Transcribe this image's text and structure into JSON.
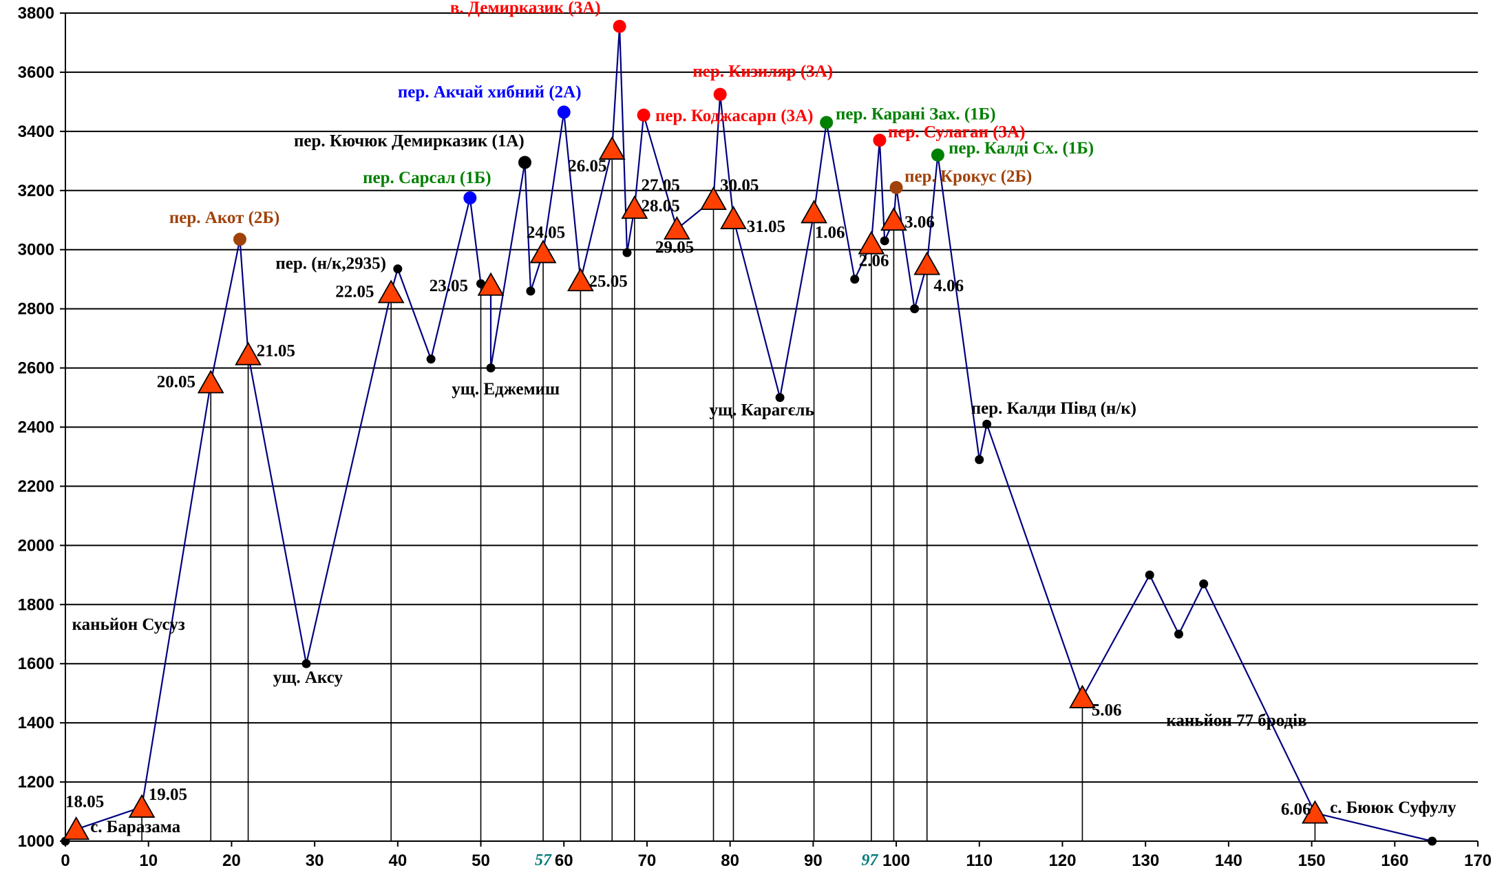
{
  "chart_data": {
    "type": "line",
    "xlim": [
      0,
      170
    ],
    "ylim": [
      1000,
      3800
    ],
    "x_ticks": [
      0,
      10,
      20,
      30,
      40,
      50,
      60,
      70,
      80,
      90,
      100,
      110,
      120,
      130,
      140,
      150,
      160,
      170
    ],
    "y_ticks": [
      1000,
      1200,
      1400,
      1600,
      1800,
      2000,
      2200,
      2400,
      2600,
      2800,
      3000,
      3200,
      3400,
      3600,
      3800
    ],
    "grid": "horizontal",
    "colors": {
      "line": "#000080",
      "camp": "#ff4000",
      "red": "#ff0000",
      "blue": "#0000ff",
      "green": "#008000",
      "brown": "#a0420a",
      "black": "#000000",
      "teal": "#007c7c"
    },
    "points": [
      {
        "x": 0,
        "y": 1000,
        "marker": "dot",
        "color": "black"
      },
      {
        "x": 1.3,
        "y": 1040,
        "marker": "camp"
      },
      {
        "x": 9.2,
        "y": 1115,
        "marker": "camp"
      },
      {
        "x": 17.5,
        "y": 2550,
        "marker": "camp"
      },
      {
        "x": 21,
        "y": 3035,
        "marker": "circle",
        "color": "brown"
      },
      {
        "x": 22,
        "y": 2645,
        "marker": "camp"
      },
      {
        "x": 29,
        "y": 1600,
        "marker": "dot",
        "color": "black"
      },
      {
        "x": 39.2,
        "y": 2855,
        "marker": "camp"
      },
      {
        "x": 40,
        "y": 2935,
        "marker": "dot",
        "color": "black"
      },
      {
        "x": 44,
        "y": 2630,
        "marker": "dot",
        "color": "black"
      },
      {
        "x": 48.7,
        "y": 3175,
        "marker": "circle",
        "color": "blue"
      },
      {
        "x": 50,
        "y": 2885,
        "marker": "dot",
        "color": "black"
      },
      {
        "x": 51.2,
        "y": 2880,
        "marker": "camp"
      },
      {
        "x": 51.2,
        "y": 2600,
        "marker": "dot",
        "color": "black"
      },
      {
        "x": 55.3,
        "y": 3295,
        "marker": "circle",
        "color": "black"
      },
      {
        "x": 56,
        "y": 2860,
        "marker": "dot",
        "color": "black"
      },
      {
        "x": 57.5,
        "y": 2990,
        "marker": "camp"
      },
      {
        "x": 60,
        "y": 3465,
        "marker": "circle",
        "color": "blue"
      },
      {
        "x": 62,
        "y": 2895,
        "marker": "camp"
      },
      {
        "x": 65.8,
        "y": 3340,
        "marker": "camp"
      },
      {
        "x": 66.7,
        "y": 3755,
        "marker": "circle",
        "color": "red"
      },
      {
        "x": 67.6,
        "y": 2990,
        "marker": "dot",
        "color": "black"
      },
      {
        "x": 68.5,
        "y": 3140,
        "marker": "camp"
      },
      {
        "x": 69.6,
        "y": 3455,
        "marker": "circle",
        "color": "red"
      },
      {
        "x": 73.6,
        "y": 3070,
        "marker": "camp"
      },
      {
        "x": 78,
        "y": 3170,
        "marker": "camp"
      },
      {
        "x": 78.8,
        "y": 3525,
        "marker": "circle",
        "color": "red"
      },
      {
        "x": 80.4,
        "y": 3105,
        "marker": "camp"
      },
      {
        "x": 86,
        "y": 2500,
        "marker": "dot",
        "color": "black"
      },
      {
        "x": 90.1,
        "y": 3125,
        "marker": "camp"
      },
      {
        "x": 91.6,
        "y": 3430,
        "marker": "circle",
        "color": "green"
      },
      {
        "x": 95,
        "y": 2900,
        "marker": "dot",
        "color": "black"
      },
      {
        "x": 97,
        "y": 3020,
        "marker": "camp"
      },
      {
        "x": 98,
        "y": 3370,
        "marker": "circle",
        "color": "red"
      },
      {
        "x": 98.6,
        "y": 3030,
        "marker": "dot",
        "color": "black"
      },
      {
        "x": 99.7,
        "y": 3100,
        "marker": "camp"
      },
      {
        "x": 100,
        "y": 3210,
        "marker": "circle",
        "color": "brown"
      },
      {
        "x": 102.2,
        "y": 2800,
        "marker": "dot",
        "color": "black"
      },
      {
        "x": 103.7,
        "y": 2950,
        "marker": "camp"
      },
      {
        "x": 105,
        "y": 3320,
        "marker": "circle",
        "color": "green"
      },
      {
        "x": 110,
        "y": 2290,
        "marker": "dot",
        "color": "black"
      },
      {
        "x": 110.9,
        "y": 2410,
        "marker": "dot",
        "color": "black"
      },
      {
        "x": 122.4,
        "y": 1485,
        "marker": "camp"
      },
      {
        "x": 130.5,
        "y": 1900,
        "marker": "dot",
        "color": "black"
      },
      {
        "x": 134,
        "y": 1700,
        "marker": "dot",
        "color": "black"
      },
      {
        "x": 137,
        "y": 1870,
        "marker": "dot",
        "color": "black"
      },
      {
        "x": 150.4,
        "y": 1095,
        "marker": "camp"
      },
      {
        "x": 164.5,
        "y": 1000,
        "marker": "dot",
        "color": "black"
      }
    ],
    "drops": [
      17.5,
      22,
      39.2,
      50,
      57.5,
      62,
      65.8,
      68.5,
      78,
      80.4,
      90.1,
      97,
      99.7,
      103.7,
      122.4,
      150.4
    ],
    "short_drops": [
      9.2
    ],
    "labels": [
      {
        "text": "18.05",
        "x": 0,
        "y": 1115,
        "color": "black"
      },
      {
        "text": "19.05",
        "x": 10,
        "y": 1140,
        "color": "black"
      },
      {
        "text": "с. Баразама",
        "x": 3,
        "y": 1030,
        "color": "black"
      },
      {
        "text": "каньйон Сусуз",
        "x": 0.8,
        "y": 1715,
        "color": "black"
      },
      {
        "text": "20.05",
        "x": 11,
        "y": 2535,
        "color": "black"
      },
      {
        "text": "21.05",
        "x": 23,
        "y": 2640,
        "color": "black"
      },
      {
        "text": "пер. Акот (2Б)",
        "x": 12.5,
        "y": 3090,
        "color": "brown"
      },
      {
        "text": "ущ. Аксу",
        "x": 25,
        "y": 1535,
        "color": "black"
      },
      {
        "text": "22.05",
        "x": 32.5,
        "y": 2840,
        "color": "black"
      },
      {
        "text": "пер. (н/к,2935)",
        "x": 25.3,
        "y": 2935,
        "color": "black"
      },
      {
        "text": "23.05",
        "x": 43.8,
        "y": 2860,
        "color": "black"
      },
      {
        "text": "ущ. Еджемиш",
        "x": 46.5,
        "y": 2510,
        "color": "black"
      },
      {
        "text": "пер. Сарсал (1Б)",
        "x": 35.8,
        "y": 3225,
        "color": "green"
      },
      {
        "text": "пер. Кючюк Демирказик (1А)",
        "x": 27.5,
        "y": 3350,
        "color": "black"
      },
      {
        "text": "пер.  Акчай хибний (2А)",
        "x": 40,
        "y": 3515,
        "color": "blue"
      },
      {
        "text": "24.05",
        "x": 55.5,
        "y": 3040,
        "color": "black"
      },
      {
        "text": "25.05",
        "x": 63,
        "y": 2875,
        "color": "black"
      },
      {
        "text": "26.05",
        "x": 60.5,
        "y": 3265,
        "color": "black"
      },
      {
        "text": "в. Демирказик (3А)",
        "x": 46.3,
        "y": 3800,
        "color": "red"
      },
      {
        "text": "27.05",
        "x": 69.3,
        "y": 3200,
        "color": "black"
      },
      {
        "text": "28.05",
        "x": 69.3,
        "y": 3130,
        "color": "black"
      },
      {
        "text": "пер. Коджасарп (3А)",
        "x": 71,
        "y": 3435,
        "color": "red"
      },
      {
        "text": "29.05",
        "x": 71,
        "y": 2990,
        "color": "black"
      },
      {
        "text": "30.05",
        "x": 78.8,
        "y": 3200,
        "color": "black"
      },
      {
        "text": "31.05",
        "x": 82,
        "y": 3060,
        "color": "black"
      },
      {
        "text": "пер. Кизиляр (3А)",
        "x": 75.5,
        "y": 3585,
        "color": "red"
      },
      {
        "text": "ущ. Карагєль",
        "x": 77.5,
        "y": 2440,
        "color": "black"
      },
      {
        "text": "1.06",
        "x": 90.2,
        "y": 3040,
        "color": "black"
      },
      {
        "text": "пер. Карані Зах. (1Б)",
        "x": 92.7,
        "y": 3440,
        "color": "green"
      },
      {
        "text": "2.06",
        "x": 95.5,
        "y": 2945,
        "color": "black"
      },
      {
        "text": "пер. Сулаган (3А)",
        "x": 99,
        "y": 3380,
        "color": "red"
      },
      {
        "text": "пер. Крокус (2Б)",
        "x": 101,
        "y": 3230,
        "color": "brown"
      },
      {
        "text": "3.06",
        "x": 101,
        "y": 3075,
        "color": "black"
      },
      {
        "text": "пер. Калді Сх. (1Б)",
        "x": 106.3,
        "y": 3325,
        "color": "green"
      },
      {
        "text": "4.06",
        "x": 104.5,
        "y": 2860,
        "color": "black"
      },
      {
        "text": "пер. Калди Півд (н/к)",
        "x": 109,
        "y": 2445,
        "color": "black"
      },
      {
        "text": "5.06",
        "x": 123.5,
        "y": 1425,
        "color": "black"
      },
      {
        "text": "каньйон 77 бродів",
        "x": 132.5,
        "y": 1390,
        "color": "black"
      },
      {
        "text": "6.06",
        "x": 146.3,
        "y": 1090,
        "color": "black"
      },
      {
        "text": "с.  Бююк Суфулу",
        "x": 152.2,
        "y": 1095,
        "color": "black"
      }
    ],
    "axis_notes": [
      {
        "text": "57",
        "x": 56.5
      },
      {
        "text": "97",
        "x": 95.8
      }
    ]
  }
}
